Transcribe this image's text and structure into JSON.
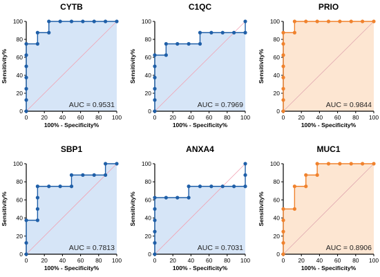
{
  "page": {
    "background": "#ffffff"
  },
  "chart_data": [
    {
      "type": "line",
      "title": "CYTB",
      "xlabel": "100% - Specificity%",
      "ylabel": "Sensitivity%",
      "xlim": [
        0,
        100
      ],
      "ylim": [
        0,
        100
      ],
      "xticks": [
        0,
        20,
        40,
        60,
        80,
        100
      ],
      "yticks": [
        0,
        20,
        40,
        60,
        80,
        100
      ],
      "auc_label": "AUC = 0.9531",
      "colors": {
        "line": "#1f5fa8",
        "fill": "#d6e5f7",
        "diagonal": "#f1a3b3"
      },
      "series": [
        {
          "x": [
            0,
            0,
            0,
            0,
            0,
            0,
            0,
            12.5,
            12.5,
            25,
            25,
            37.5,
            50,
            62.5,
            75,
            87.5,
            100
          ],
          "y": [
            0,
            12.5,
            25,
            37.5,
            50,
            62.5,
            75,
            75,
            87.5,
            87.5,
            100,
            100,
            100,
            100,
            100,
            100,
            100
          ]
        }
      ]
    },
    {
      "type": "line",
      "title": "C1QC",
      "xlabel": "100% - Specificity%",
      "ylabel": "Sensitivity%",
      "xlim": [
        0,
        100
      ],
      "ylim": [
        0,
        100
      ],
      "xticks": [
        0,
        20,
        40,
        60,
        80,
        100
      ],
      "yticks": [
        0,
        20,
        40,
        60,
        80,
        100
      ],
      "auc_label": "AUC = 0.7969",
      "colors": {
        "line": "#1f5fa8",
        "fill": "#d6e5f7",
        "diagonal": "#f1a3b3"
      },
      "series": [
        {
          "x": [
            0,
            0,
            0,
            0,
            0,
            0,
            12.5,
            12.5,
            25,
            37.5,
            50,
            50,
            62.5,
            75,
            87.5,
            100,
            100
          ],
          "y": [
            0,
            12.5,
            25,
            37.5,
            50,
            62.5,
            62.5,
            75,
            75,
            75,
            75,
            87.5,
            87.5,
            87.5,
            87.5,
            87.5,
            100
          ]
        }
      ]
    },
    {
      "type": "line",
      "title": "PRIO",
      "xlabel": "100% - Specificity%",
      "ylabel": "Sensitivity%",
      "xlim": [
        0,
        100
      ],
      "ylim": [
        0,
        100
      ],
      "xticks": [
        0,
        20,
        40,
        60,
        80,
        100
      ],
      "yticks": [
        0,
        20,
        40,
        60,
        80,
        100
      ],
      "auc_label": "AUC = 0.9844",
      "colors": {
        "line": "#f0822d",
        "fill": "#fde6d2",
        "diagonal": "#e0a8b0"
      },
      "series": [
        {
          "x": [
            0,
            0,
            0,
            0,
            0,
            0,
            0,
            0,
            12.5,
            12.5,
            25,
            37.5,
            50,
            62.5,
            75,
            87.5,
            100
          ],
          "y": [
            0,
            12.5,
            25,
            37.5,
            50,
            62.5,
            75,
            87.5,
            87.5,
            100,
            100,
            100,
            100,
            100,
            100,
            100,
            100
          ]
        }
      ]
    },
    {
      "type": "line",
      "title": "SBP1",
      "xlabel": "100% - Specificity%",
      "ylabel": "Sensitivity%",
      "xlim": [
        0,
        100
      ],
      "ylim": [
        0,
        100
      ],
      "xticks": [
        0,
        20,
        40,
        60,
        80,
        100
      ],
      "yticks": [
        0,
        20,
        40,
        60,
        80,
        100
      ],
      "auc_label": "AUC = 0.7813",
      "colors": {
        "line": "#1f5fa8",
        "fill": "#d6e5f7",
        "diagonal": "#f1a3b3"
      },
      "series": [
        {
          "x": [
            0,
            0,
            0,
            12.5,
            12.5,
            12.5,
            12.5,
            25,
            37.5,
            50,
            50,
            62.5,
            75,
            87.5,
            87.5,
            100
          ],
          "y": [
            0,
            12.5,
            37.5,
            37.5,
            50,
            62.5,
            75,
            75,
            75,
            75,
            87.5,
            87.5,
            87.5,
            87.5,
            100,
            100
          ]
        }
      ]
    },
    {
      "type": "line",
      "title": "ANXA4",
      "xlabel": "100% - Specificity%",
      "ylabel": "Sensitivity%",
      "xlim": [
        0,
        100
      ],
      "ylim": [
        0,
        100
      ],
      "xticks": [
        0,
        20,
        40,
        60,
        80,
        100
      ],
      "yticks": [
        0,
        20,
        40,
        60,
        80,
        100
      ],
      "auc_label": "AUC = 0.7031",
      "colors": {
        "line": "#1f5fa8",
        "fill": "#d6e5f7",
        "diagonal": "#f1a3b3"
      },
      "series": [
        {
          "x": [
            0,
            0,
            0,
            0,
            0,
            0,
            12.5,
            25,
            37.5,
            37.5,
            50,
            62.5,
            75,
            87.5,
            100,
            100,
            100
          ],
          "y": [
            0,
            12.5,
            25,
            37.5,
            50,
            62.5,
            62.5,
            62.5,
            62.5,
            75,
            75,
            75,
            75,
            75,
            75,
            87.5,
            100
          ]
        }
      ]
    },
    {
      "type": "line",
      "title": "MUC1",
      "xlabel": "100% - Specificity%",
      "ylabel": "Sensitivity%",
      "xlim": [
        0,
        100
      ],
      "ylim": [
        0,
        100
      ],
      "xticks": [
        0,
        20,
        40,
        60,
        80,
        100
      ],
      "yticks": [
        0,
        20,
        40,
        60,
        80,
        100
      ],
      "auc_label": "AUC = 0.8906",
      "colors": {
        "line": "#f0822d",
        "fill": "#fde6d2",
        "diagonal": "#e0a8b0"
      },
      "series": [
        {
          "x": [
            0,
            0,
            0,
            0,
            0,
            12.5,
            12.5,
            25,
            25,
            37.5,
            37.5,
            50,
            62.5,
            75,
            87.5,
            100
          ],
          "y": [
            0,
            12.5,
            25,
            37.5,
            50,
            50,
            75,
            75,
            87.5,
            87.5,
            100,
            100,
            100,
            100,
            100,
            100
          ]
        }
      ]
    }
  ]
}
